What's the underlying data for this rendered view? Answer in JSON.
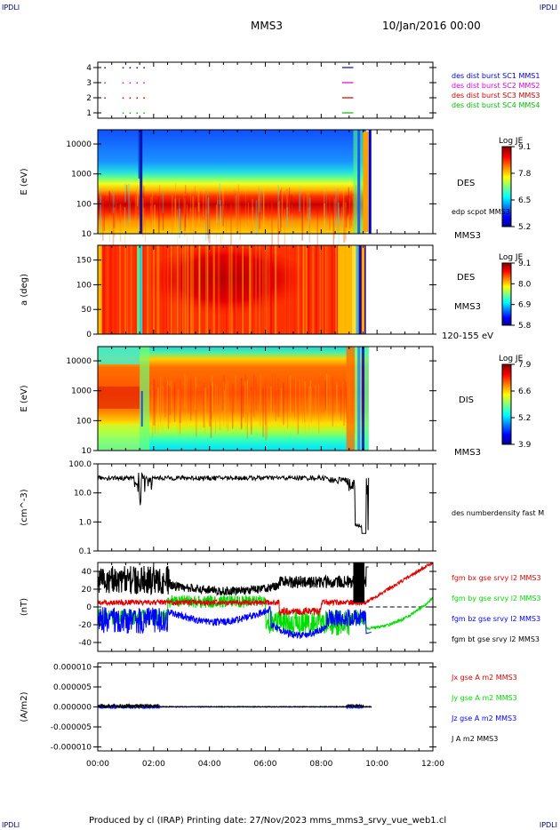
{
  "header": {
    "corner_tl": "IPDLI",
    "corner_tr": "IPDLI",
    "spacecraft": "MMS3",
    "date": "10/Jan/2016 00:00"
  },
  "footer": {
    "text": "Produced by cl (IRAP)   Printing date: 27/Nov/2023   mms_mms3_srvy_vue_web1.cl",
    "corner_bl": "IPDLI",
    "corner_br": "IPDLI"
  },
  "colors": {
    "mms1": "#0000c8",
    "mms2": "#e000e0",
    "mms3": "#d00000",
    "mms4": "#00c000",
    "bx": "#e00000",
    "by": "#00dd00",
    "bz": "#0000ff",
    "bt": "#000000"
  },
  "chart_data": [
    {
      "type": "scatter",
      "id": "burst",
      "yticks": [
        "1",
        "2",
        "3",
        "4"
      ],
      "legend": [
        {
          "name": "des dist burst SC1 MMS1",
          "color": "#0000c8"
        },
        {
          "name": "des dist burst SC2 MMS2",
          "color": "#e000e0"
        },
        {
          "name": "des dist burst SC3 MMS3",
          "color": "#d00000"
        },
        {
          "name": "des dist burst SC4 MMS4",
          "color": "#00c000"
        }
      ],
      "markers_hours": [
        0.25,
        0.9,
        1.15,
        1.4,
        1.65
      ],
      "segments_hours": [
        [
          8.75,
          9.15
        ]
      ]
    },
    {
      "type": "heatmap",
      "id": "des_energy",
      "ylabel": "E (eV)",
      "yscale": "log",
      "ylim": [
        10,
        30000
      ],
      "yticks": [
        "10",
        "100",
        "1000",
        "10000"
      ],
      "label": "DES",
      "label2": "MMS3",
      "annotation": "edp scpot MMS3",
      "colorbar": {
        "title": "Log JE",
        "ticks": [
          "9.1",
          "7.8",
          "6.5",
          "5.2"
        ]
      }
    },
    {
      "type": "heatmap",
      "id": "des_pitch",
      "ylabel": "a (deg)",
      "ylim": [
        0,
        180
      ],
      "yticks": [
        "0",
        "50",
        "100",
        "150"
      ],
      "label": "DES",
      "label2": "MMS3",
      "annotation": "120-155 eV",
      "colorbar": {
        "title": "Log JE",
        "ticks": [
          "9.1",
          "8.0",
          "6.9",
          "5.8"
        ]
      }
    },
    {
      "type": "heatmap",
      "id": "dis_energy",
      "ylabel": "E (eV)",
      "yscale": "log",
      "ylim": [
        10,
        30000
      ],
      "yticks": [
        "10",
        "100",
        "1000",
        "10000"
      ],
      "label": "DIS",
      "label2": "MMS3",
      "colorbar": {
        "title": "Log JE",
        "ticks": [
          "7.9",
          "6.6",
          "5.2",
          "3.9"
        ]
      }
    },
    {
      "type": "line",
      "id": "density",
      "ylabel": "(cm^-3)",
      "yscale": "log",
      "ylim": [
        0.1,
        100
      ],
      "yticks": [
        "0.1",
        "1.0",
        "10.0",
        "100.0"
      ],
      "series": [
        {
          "name": "des numberdensity fast M",
          "color": "#000000"
        }
      ]
    },
    {
      "type": "line",
      "id": "bfield",
      "ylabel": "(nT)",
      "ylim": [
        -50,
        50
      ],
      "yticks": [
        "-40",
        "-20",
        "0",
        "20",
        "40"
      ],
      "series": [
        {
          "name": "fgm bx gse srvy l2 MMS3",
          "color": "#e00000"
        },
        {
          "name": "fgm by gse srvy l2 MMS3",
          "color": "#00dd00"
        },
        {
          "name": "fgm bz gse srvy l2 MMS3",
          "color": "#0000ff"
        },
        {
          "name": "fgm bt gse srvy l2 MMS3",
          "color": "#000000"
        }
      ]
    },
    {
      "type": "line",
      "id": "current",
      "ylabel": "(A/m2)",
      "ylim": [
        -1.1e-05,
        1.1e-05
      ],
      "yticks": [
        "-0.000010",
        "-0.000005",
        "0.000000",
        "0.000005",
        "0.000010"
      ],
      "xlim_hours": [
        0,
        12
      ],
      "xticks": [
        "00:00",
        "02:00",
        "04:00",
        "06:00",
        "08:00",
        "10:00",
        "12:00"
      ],
      "series": [
        {
          "name": "Jx gse A m2 MMS3",
          "color": "#e00000"
        },
        {
          "name": "Jy gse A m2 MMS3",
          "color": "#00dd00"
        },
        {
          "name": "Jz gse A m2 MMS3",
          "color": "#0000ff"
        },
        {
          "name": "J A m2 MMS3",
          "color": "#000000"
        }
      ]
    }
  ]
}
